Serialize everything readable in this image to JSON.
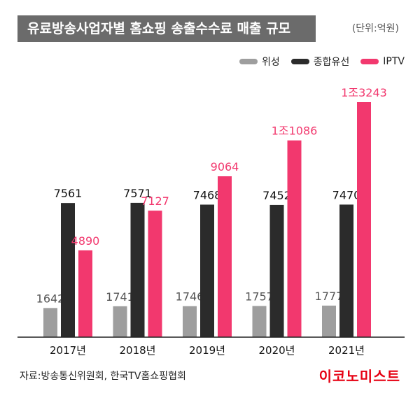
{
  "header": {
    "title": "유료방송사업자별 홈쇼핑 송출수수료 매출 규모",
    "unit": "(단위:억원)"
  },
  "legend": [
    {
      "label": "위성",
      "color": "#9e9e9e"
    },
    {
      "label": "종합유선",
      "color": "#2b2b2b"
    },
    {
      "label": "IPTV",
      "color": "#f2386e"
    }
  ],
  "chart_data": {
    "type": "bar",
    "categories": [
      "2017년",
      "2018년",
      "2019년",
      "2020년",
      "2021년"
    ],
    "series": [
      {
        "name": "위성",
        "color": "#9e9e9e",
        "values": [
          1642,
          1741,
          1746,
          1757,
          1777
        ],
        "labels": [
          "1642",
          "1741",
          "1746",
          "1757",
          "1777"
        ]
      },
      {
        "name": "종합유선",
        "color": "#2b2b2b",
        "values": [
          7561,
          7571,
          7468,
          7452,
          7470
        ],
        "labels": [
          "7561",
          "7571",
          "7468",
          "7452",
          "7470"
        ]
      },
      {
        "name": "IPTV",
        "color": "#f2386e",
        "values": [
          4890,
          7127,
          9064,
          11086,
          13243
        ],
        "labels": [
          "4890",
          "7127",
          "9064",
          "1조1086",
          "1조3243"
        ]
      }
    ],
    "ylim": [
      0,
      13243
    ],
    "grid": false,
    "legend_position": "top-right"
  },
  "footer": {
    "source": "자료:방송통신위원회, 한국TV홈쇼핑협회",
    "logo": "이코노미스트"
  }
}
